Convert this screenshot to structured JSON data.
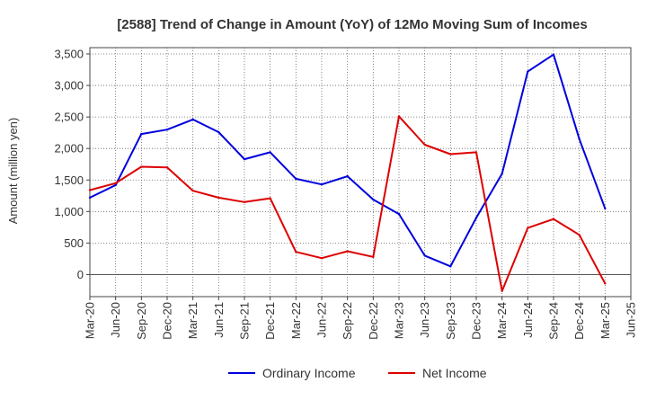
{
  "chart_data": {
    "type": "line",
    "title": "[2588]  Trend of Change in Amount (YoY) of 12Mo Moving Sum of Incomes",
    "xlabel": "",
    "ylabel": "Amount (million yen)",
    "categories": [
      "Mar-20",
      "Jun-20",
      "Sep-20",
      "Dec-20",
      "Mar-21",
      "Jun-21",
      "Sep-21",
      "Dec-21",
      "Mar-22",
      "Jun-22",
      "Sep-22",
      "Dec-22",
      "Mar-23",
      "Jun-23",
      "Sep-23",
      "Dec-23",
      "Mar-24",
      "Jun-24",
      "Sep-24",
      "Dec-24",
      "Mar-25",
      "Jun-25"
    ],
    "ylim": [
      -350,
      3600
    ],
    "yticks": [
      0,
      500,
      1000,
      1500,
      2000,
      2500,
      3000,
      3500
    ],
    "ytick_labels": [
      "0",
      "500",
      "1,000",
      "1,500",
      "2,000",
      "2,500",
      "3,000",
      "3,500"
    ],
    "grid": true,
    "legend_position": "bottom-center",
    "series": [
      {
        "name": "Ordinary Income",
        "color": "#0000dd",
        "values": [
          1220,
          1420,
          2230,
          2300,
          2460,
          2260,
          1830,
          1940,
          1520,
          1430,
          1560,
          1190,
          960,
          300,
          130,
          900,
          1600,
          3220,
          3490,
          2150,
          1050,
          null
        ]
      },
      {
        "name": "Net Income",
        "color": "#dd0000",
        "values": [
          1340,
          1450,
          1710,
          1700,
          1330,
          1220,
          1150,
          1210,
          360,
          260,
          370,
          280,
          2510,
          2060,
          1910,
          1940,
          -260,
          740,
          880,
          630,
          -140,
          null
        ]
      }
    ]
  }
}
